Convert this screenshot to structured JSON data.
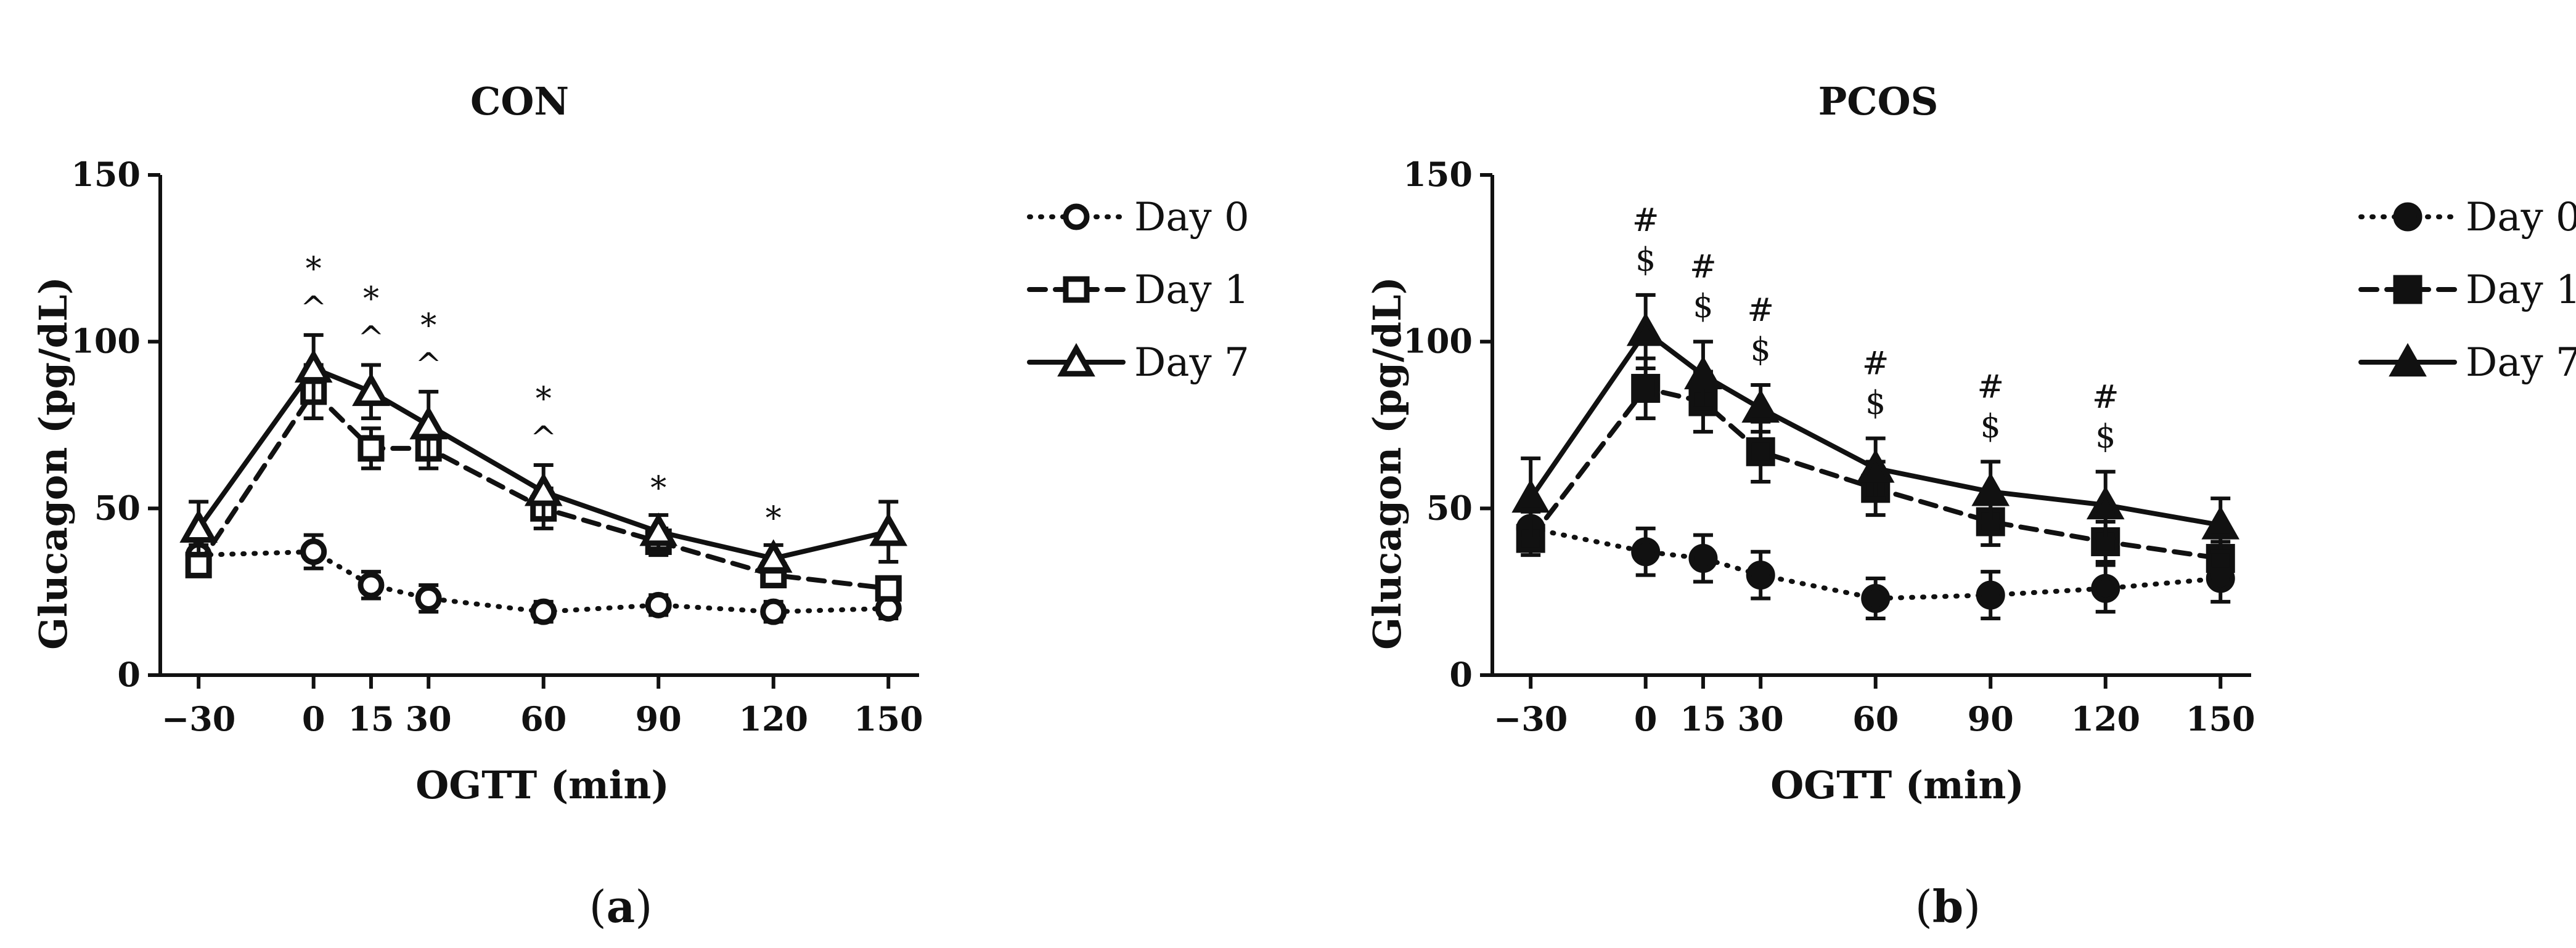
{
  "chart_data": [
    {
      "type": "line",
      "panel": "(a)",
      "panel_letter": "a",
      "title": "CON",
      "xlabel": "OGTT  (min)",
      "ylabel": "Glucagon (pg/dL)",
      "x": [
        -30,
        0,
        15,
        30,
        60,
        90,
        120,
        150
      ],
      "x_tick_labels": [
        "−30",
        "0",
        "15",
        "30",
        "60",
        "90",
        "120",
        "150"
      ],
      "xlim": [
        -40,
        158
      ],
      "ylim": [
        0,
        150
      ],
      "y_ticks": [
        0,
        50,
        100,
        150
      ],
      "y_tick_labels": [
        "0",
        "50",
        "100",
        "150"
      ],
      "markers_filled": false,
      "series": [
        {
          "name": "Day 0",
          "marker": "circle",
          "line": "dotted",
          "values": [
            36,
            37,
            27,
            23,
            19,
            21,
            19,
            20
          ],
          "errors": [
            3,
            5,
            4,
            4,
            3,
            3,
            3,
            3
          ]
        },
        {
          "name": "Day 1",
          "marker": "square",
          "line": "dashed",
          "values": [
            33,
            85,
            68,
            68,
            50,
            40,
            30,
            26
          ],
          "errors": [
            3,
            8,
            6,
            6,
            6,
            4,
            3,
            3
          ]
        },
        {
          "name": "Day 7",
          "marker": "triangle",
          "line": "solid",
          "values": [
            44,
            92,
            85,
            75,
            55,
            43,
            35,
            43
          ],
          "errors": [
            8,
            10,
            8,
            10,
            8,
            5,
            4,
            9
          ]
        }
      ],
      "annotations": [
        {
          "x": 0,
          "lines": [
            "*",
            "^"
          ]
        },
        {
          "x": 15,
          "lines": [
            "*",
            "^"
          ]
        },
        {
          "x": 30,
          "lines": [
            "*",
            "^"
          ]
        },
        {
          "x": 60,
          "lines": [
            "*",
            "^"
          ]
        },
        {
          "x": 90,
          "lines": [
            "*"
          ]
        },
        {
          "x": 120,
          "lines": [
            "*"
          ]
        }
      ]
    },
    {
      "type": "line",
      "panel": "(b)",
      "panel_letter": "b",
      "title": "PCOS",
      "xlabel": "OGTT  (min)",
      "ylabel": "Glucagon (pg/dL)",
      "x": [
        -30,
        0,
        15,
        30,
        60,
        90,
        120,
        150
      ],
      "x_tick_labels": [
        "−30",
        "0",
        "15",
        "30",
        "60",
        "90",
        "120",
        "150"
      ],
      "xlim": [
        -40,
        158
      ],
      "ylim": [
        0,
        150
      ],
      "y_ticks": [
        0,
        50,
        100,
        150
      ],
      "y_tick_labels": [
        "0",
        "50",
        "100",
        "150"
      ],
      "markers_filled": true,
      "series": [
        {
          "name": "Day 0",
          "marker": "circle",
          "line": "dotted",
          "values": [
            44,
            37,
            35,
            30,
            23,
            24,
            26,
            29
          ],
          "errors": [
            5,
            7,
            7,
            7,
            6,
            7,
            7,
            7
          ]
        },
        {
          "name": "Day 1",
          "marker": "square",
          "line": "dashed",
          "values": [
            41,
            86,
            82,
            67,
            56,
            46,
            40,
            35
          ],
          "errors": [
            5,
            9,
            9,
            9,
            8,
            7,
            6,
            5
          ]
        },
        {
          "name": "Day 7",
          "marker": "triangle",
          "line": "solid",
          "values": [
            53,
            103,
            90,
            80,
            62,
            55,
            51,
            45
          ],
          "errors": [
            12,
            11,
            10,
            7,
            9,
            9,
            10,
            8
          ]
        }
      ],
      "annotations": [
        {
          "x": 0,
          "lines": [
            "#",
            "$"
          ]
        },
        {
          "x": 15,
          "lines": [
            "#",
            "$"
          ]
        },
        {
          "x": 30,
          "lines": [
            "#",
            "$"
          ]
        },
        {
          "x": 60,
          "lines": [
            "#",
            "$"
          ]
        },
        {
          "x": 90,
          "lines": [
            "#",
            "$"
          ]
        },
        {
          "x": 120,
          "lines": [
            "#",
            "$"
          ]
        }
      ]
    }
  ]
}
